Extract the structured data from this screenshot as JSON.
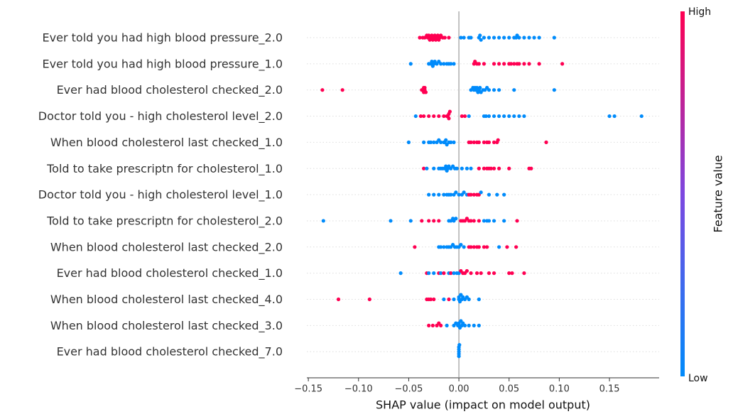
{
  "chart_data": {
    "type": "beeswarm",
    "x_label": "SHAP value (impact on model output)",
    "categories": [
      "Ever told you had high blood pressure_2.0",
      "Ever told you had high blood pressure_1.0",
      "Ever had blood cholesterol checked_2.0",
      "Doctor told you - high cholesterol level_2.0",
      "When blood cholesterol last checked_1.0",
      "Told to take prescriptn for cholesterol_1.0",
      "Doctor told you - high cholesterol level_1.0",
      "Told to take prescriptn for cholesterol_2.0",
      "When blood cholesterol last checked_2.0",
      "Ever had blood cholesterol checked_1.0",
      "When blood cholesterol last checked_4.0",
      "When blood cholesterol last checked_3.0",
      "Ever had blood cholesterol checked_7.0"
    ],
    "shap_values": [
      [
        -0.039,
        -0.036,
        -0.034,
        -0.032,
        -0.031,
        -0.03,
        -0.029,
        -0.028,
        -0.027,
        -0.026,
        -0.025,
        -0.024,
        -0.023,
        -0.022,
        -0.021,
        -0.02,
        -0.019,
        -0.018,
        -0.016,
        -0.014,
        -0.01,
        0.002,
        0.005,
        0.01,
        0.012,
        0.02,
        0.021,
        0.022,
        0.025,
        0.03,
        0.035,
        0.04,
        0.045,
        0.05,
        0.055,
        0.057,
        0.058,
        0.06,
        0.065,
        0.07,
        0.075,
        0.08,
        0.095
      ],
      [
        -0.048,
        -0.03,
        -0.028,
        -0.027,
        -0.026,
        -0.025,
        -0.024,
        -0.022,
        -0.02,
        -0.018,
        -0.015,
        -0.012,
        -0.01,
        -0.008,
        -0.005,
        0.015,
        0.016,
        0.018,
        0.02,
        0.025,
        0.035,
        0.04,
        0.045,
        0.05,
        0.052,
        0.055,
        0.058,
        0.06,
        0.065,
        0.07,
        0.08,
        0.103
      ],
      [
        -0.136,
        -0.116,
        -0.037,
        -0.036,
        -0.035,
        -0.035,
        -0.034,
        -0.034,
        -0.033,
        0.012,
        0.014,
        0.015,
        0.016,
        0.017,
        0.018,
        0.019,
        0.02,
        0.021,
        0.022,
        0.024,
        0.026,
        0.028,
        0.03,
        0.035,
        0.04,
        0.055,
        0.095
      ],
      [
        -0.043,
        -0.038,
        -0.035,
        -0.03,
        -0.025,
        -0.02,
        -0.015,
        -0.012,
        -0.011,
        -0.01,
        -0.01,
        -0.009,
        0.003,
        0.006,
        0.01,
        0.025,
        0.027,
        0.03,
        0.035,
        0.04,
        0.045,
        0.05,
        0.055,
        0.06,
        0.065,
        0.15,
        0.155,
        0.182
      ],
      [
        -0.05,
        -0.035,
        -0.03,
        -0.028,
        -0.025,
        -0.022,
        -0.02,
        -0.018,
        -0.015,
        -0.014,
        -0.013,
        -0.012,
        -0.01,
        -0.008,
        -0.005,
        0.01,
        0.012,
        0.015,
        0.018,
        0.02,
        0.025,
        0.028,
        0.03,
        0.035,
        0.038,
        0.039,
        0.087
      ],
      [
        -0.035,
        -0.032,
        -0.025,
        -0.02,
        -0.018,
        -0.016,
        -0.014,
        -0.013,
        -0.012,
        -0.011,
        -0.01,
        -0.008,
        -0.006,
        -0.004,
        -0.002,
        0.003,
        0.008,
        0.012,
        0.02,
        0.025,
        0.028,
        0.03,
        0.032,
        0.035,
        0.04,
        0.05,
        0.07,
        0.072
      ],
      [
        -0.03,
        -0.025,
        -0.02,
        -0.015,
        -0.012,
        -0.01,
        -0.008,
        -0.005,
        -0.003,
        0,
        0.003,
        0.005,
        0.008,
        0.01,
        0.012,
        0.015,
        0.018,
        0.02,
        0.022,
        0.03,
        0.038,
        0.045
      ],
      [
        -0.135,
        -0.068,
        -0.048,
        -0.037,
        -0.03,
        -0.025,
        -0.02,
        -0.01,
        -0.008,
        -0.006,
        -0.005,
        -0.003,
        0.002,
        0.004,
        0.006,
        0.008,
        0.01,
        0.012,
        0.015,
        0.02,
        0.025,
        0.028,
        0.03,
        0.035,
        0.045,
        0.058
      ],
      [
        -0.044,
        -0.02,
        -0.018,
        -0.015,
        -0.012,
        -0.01,
        -0.008,
        -0.006,
        -0.004,
        -0.002,
        0,
        0.002,
        0.005,
        0.01,
        0.012,
        0.015,
        0.018,
        0.02,
        0.025,
        0.028,
        0.04,
        0.048,
        0.057
      ],
      [
        -0.058,
        -0.032,
        -0.03,
        -0.025,
        -0.02,
        -0.018,
        -0.015,
        -0.01,
        -0.008,
        -0.005,
        -0.002,
        0,
        0.002,
        0.004,
        0.006,
        0.008,
        0.012,
        0.018,
        0.022,
        0.03,
        0.035,
        0.05,
        0.053,
        0.065
      ],
      [
        -0.12,
        -0.089,
        -0.032,
        -0.03,
        -0.028,
        -0.025,
        -0.015,
        -0.01,
        -0.005,
        0,
        0,
        0.001,
        0.002,
        0.003,
        0.004,
        0.006,
        0.008,
        0.01,
        0.02
      ],
      [
        -0.03,
        -0.026,
        -0.022,
        -0.02,
        -0.018,
        -0.012,
        -0.005,
        -0.003,
        -0.001,
        0,
        0,
        0.001,
        0.002,
        0.003,
        0.004,
        0.006,
        0.01,
        0.015,
        0.02
      ],
      [
        0,
        0,
        0,
        0,
        0,
        0.0005
      ]
    ],
    "feature_values": [
      [
        1,
        1,
        1,
        1,
        1,
        1,
        1,
        1,
        1,
        1,
        1,
        1,
        1,
        1,
        1,
        1,
        1,
        1,
        1,
        1,
        1,
        0,
        0,
        0,
        0,
        0,
        0,
        0,
        0,
        0,
        0,
        0,
        0,
        0,
        0,
        0,
        0,
        0,
        0,
        0,
        0,
        0,
        0
      ],
      [
        0,
        0,
        0,
        0,
        0,
        0,
        0,
        0,
        0,
        0,
        0,
        0,
        0,
        0,
        0,
        1,
        1,
        1,
        1,
        1,
        1,
        1,
        1,
        1,
        1,
        1,
        1,
        1,
        1,
        1,
        1,
        1
      ],
      [
        1,
        1,
        1,
        1,
        1,
        1,
        1,
        1,
        1,
        0,
        0,
        0,
        0,
        0,
        0,
        0,
        0,
        0,
        0,
        0,
        0,
        0,
        0,
        0,
        0,
        0,
        0
      ],
      [
        0,
        1,
        1,
        1,
        1,
        1,
        1,
        1,
        1,
        1,
        1,
        1,
        1,
        1,
        0,
        0,
        0,
        0,
        0,
        0,
        0,
        0,
        0,
        0,
        0,
        0,
        0,
        0
      ],
      [
        0,
        0,
        0,
        0,
        0,
        0,
        0,
        0,
        0,
        0,
        0,
        0,
        0,
        0,
        0,
        1,
        1,
        1,
        1,
        1,
        1,
        1,
        1,
        1,
        1,
        1,
        1
      ],
      [
        1,
        0,
        0,
        0,
        0,
        0,
        0,
        0,
        0,
        0,
        0,
        0,
        0,
        0,
        0,
        0,
        0,
        0,
        1,
        1,
        1,
        1,
        1,
        1,
        1,
        1,
        1,
        1
      ],
      [
        0,
        0,
        0,
        0,
        0,
        0,
        0,
        0,
        0,
        0,
        0,
        0,
        0,
        1,
        1,
        1,
        1,
        1,
        0,
        0,
        0,
        0
      ],
      [
        0,
        0,
        0,
        1,
        1,
        1,
        1,
        0,
        0,
        0,
        0,
        0,
        1,
        1,
        1,
        1,
        1,
        1,
        1,
        1,
        0,
        0,
        0,
        0,
        0,
        1
      ],
      [
        1,
        0,
        0,
        0,
        0,
        0,
        0,
        0,
        0,
        0,
        0,
        0,
        0,
        1,
        1,
        1,
        1,
        1,
        1,
        1,
        0,
        1,
        1
      ],
      [
        0,
        1,
        0,
        0,
        1,
        0,
        1,
        0,
        1,
        0,
        0,
        0,
        1,
        1,
        1,
        1,
        1,
        1,
        1,
        1,
        1,
        1,
        1,
        1
      ],
      [
        1,
        1,
        1,
        1,
        1,
        1,
        0,
        1,
        0,
        0,
        0,
        0,
        0,
        0,
        0,
        0,
        0,
        0,
        0
      ],
      [
        1,
        1,
        1,
        1,
        1,
        0,
        0,
        0,
        0,
        0,
        0,
        0,
        0,
        0,
        0,
        0,
        0,
        0,
        0
      ],
      [
        0,
        0,
        0,
        0,
        0,
        0
      ]
    ],
    "xlim": [
      -0.1515,
      0.1995
    ],
    "xticks": [
      {
        "value": -0.15,
        "label": "−0.15"
      },
      {
        "value": -0.1,
        "label": "−0.10"
      },
      {
        "value": -0.05,
        "label": "−0.05"
      },
      {
        "value": 0,
        "label": "0.00"
      },
      {
        "value": 0.05,
        "label": "0.05"
      },
      {
        "value": 0.1,
        "label": "0.10"
      },
      {
        "value": 0.15,
        "label": "0.15"
      }
    ],
    "colorbar": {
      "label": "Feature value",
      "high": "High",
      "low": "Low",
      "colors": [
        "#008bfb",
        "#ff0052"
      ]
    }
  }
}
